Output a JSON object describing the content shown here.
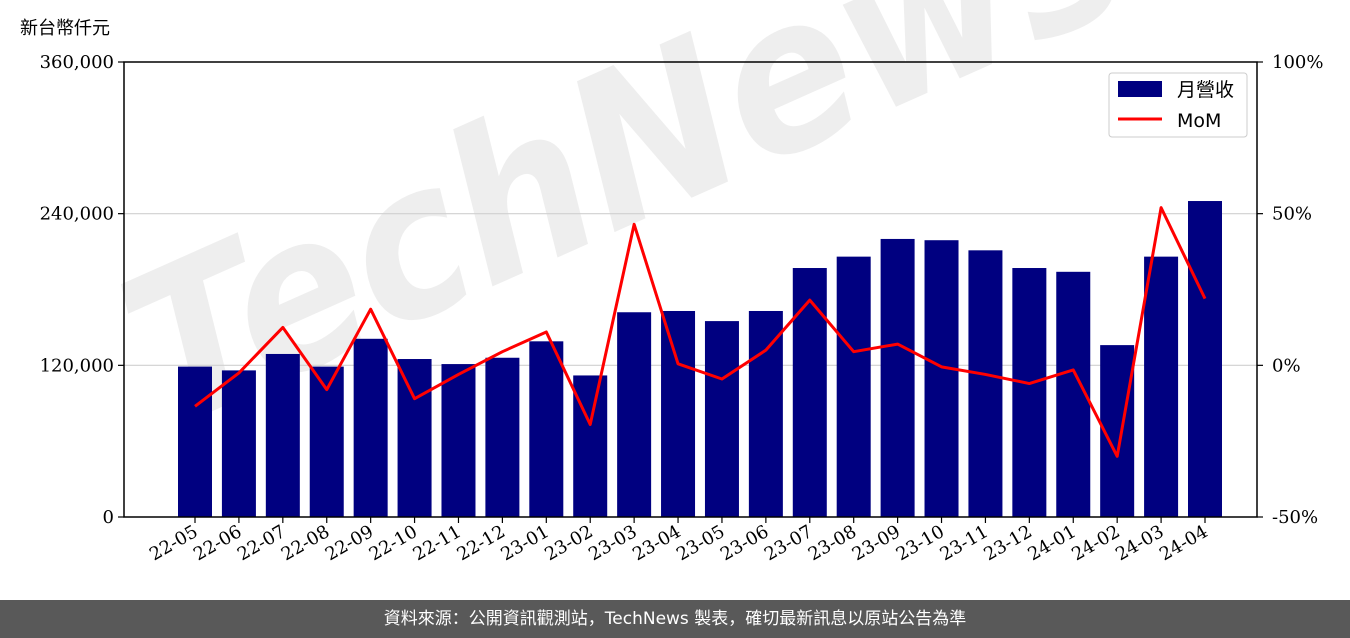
{
  "unit_label": "新台幣仟元",
  "footer_text": "資料來源：公開資訊觀測站，TechNews 製表，確切最新訊息以原站公告為準",
  "watermark_text": "TechNews",
  "colors": {
    "bar": "#000080",
    "line": "#ff0000",
    "grid": "#d0d0d0",
    "footer_bg": "#595959"
  },
  "chart_data": {
    "type": "bar",
    "categories": [
      "22-05",
      "22-06",
      "22-07",
      "22-08",
      "22-09",
      "22-10",
      "22-11",
      "22-12",
      "23-01",
      "23-02",
      "23-03",
      "23-04",
      "23-05",
      "23-06",
      "23-07",
      "23-08",
      "23-09",
      "23-10",
      "23-11",
      "23-12",
      "24-01",
      "24-02",
      "24-03",
      "24-04"
    ],
    "series": [
      {
        "name": "月營收",
        "type": "bar",
        "axis": "left",
        "values": [
          119000,
          116000,
          129000,
          119000,
          141000,
          125000,
          121000,
          126000,
          139000,
          112000,
          162000,
          163000,
          155000,
          163000,
          197000,
          206000,
          220000,
          219000,
          211000,
          197000,
          194000,
          136000,
          206000,
          250000
        ]
      },
      {
        "name": "MoM",
        "type": "line",
        "axis": "right",
        "values": [
          -13.5,
          -2.5,
          12.5,
          -8,
          18.5,
          -11,
          -3,
          4.5,
          11,
          -19.5,
          46.5,
          0.5,
          -4.5,
          5,
          21.5,
          4.5,
          7,
          -0.5,
          -3,
          -6,
          -1.5,
          -30,
          52,
          22
        ]
      }
    ],
    "y_left": {
      "min": 0,
      "max": 360000,
      "ticks": [
        0,
        120000,
        240000,
        360000
      ],
      "tick_labels": [
        "0",
        "120,000",
        "240,000",
        "360,000"
      ]
    },
    "y_right": {
      "min": -50,
      "max": 100,
      "ticks": [
        -50,
        0,
        50,
        100
      ],
      "tick_labels": [
        "-50%",
        "0%",
        "50%",
        "100%"
      ]
    },
    "grid": "horizontal",
    "legend_position": "top-right"
  }
}
